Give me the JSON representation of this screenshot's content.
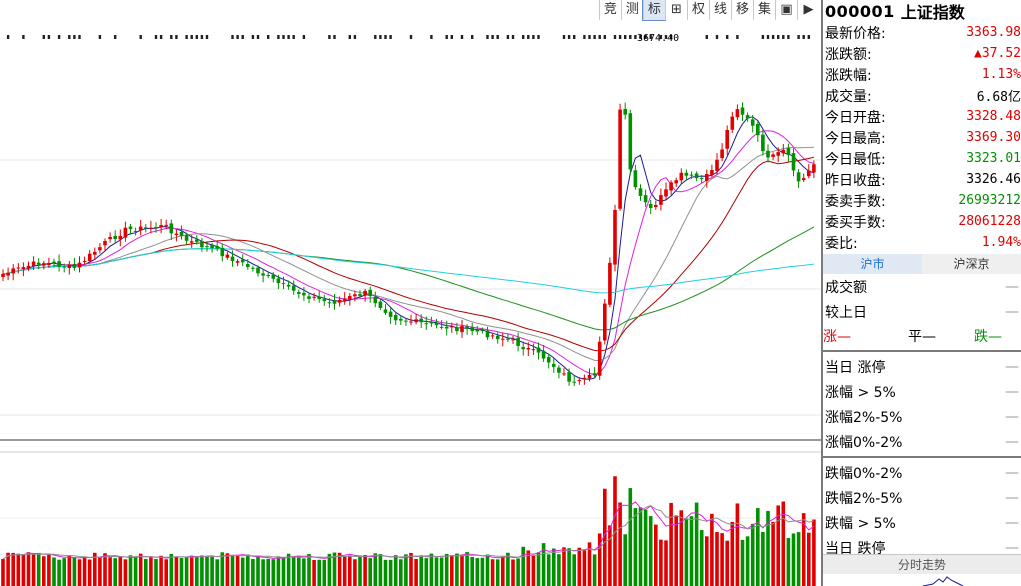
{
  "toolbar": {
    "buttons": [
      "竞",
      "测",
      "标",
      "⊞",
      "权",
      "线",
      "移",
      "集",
      "▣",
      "▶"
    ],
    "active_index": 2
  },
  "chart": {
    "peak_label": "3674.40"
  },
  "quote": {
    "code": "000001",
    "name": "上证指数",
    "rows": [
      {
        "label": "最新价格:",
        "value": "3363.98",
        "color": "up"
      },
      {
        "label": "涨跌额:",
        "value": "▲37.52",
        "color": "up"
      },
      {
        "label": "涨跌幅:",
        "value": "1.13%",
        "color": "up"
      },
      {
        "label": "成交量:",
        "value": "6.68亿",
        "color": "neutral"
      },
      {
        "label": "今日开盘:",
        "value": "3328.48",
        "color": "up"
      },
      {
        "label": "今日最高:",
        "value": "3369.30",
        "color": "up"
      },
      {
        "label": "今日最低:",
        "value": "3323.01",
        "color": "down"
      },
      {
        "label": "昨日收盘:",
        "value": "3326.46",
        "color": "neutral"
      },
      {
        "label": "委卖手数:",
        "value": "26993212",
        "color": "down"
      },
      {
        "label": "委买手数:",
        "value": "28061228",
        "color": "up"
      },
      {
        "label": "委比:",
        "value": "1.94%",
        "color": "up"
      }
    ]
  },
  "market_tabs": [
    "沪市",
    "沪深京"
  ],
  "stats": {
    "turnover_label": "成交额",
    "turnover_value": "—",
    "prev_day_label": "较上日",
    "prev_day_value": "—",
    "rise_label": "涨—",
    "flat_label": "平—",
    "fall_label": "跌—",
    "up_rows": [
      "当日 涨停",
      "涨幅 > 5%",
      "涨幅2%-5%",
      "涨幅0%-2%"
    ],
    "down_rows": [
      "跌幅0%-2%",
      "跌幅2%-5%",
      "跌幅 > 5%",
      "当日 跌停"
    ],
    "row_dash": "—"
  },
  "intraday_button": "分时走势",
  "colors": {
    "up": "#e00000",
    "down": "#009000",
    "ma5": "#1a1a99",
    "ma10": "#e020e0",
    "ma20": "#909090",
    "ma30": "#b00000",
    "ma60": "#1e8f1e",
    "ma120": "#20d0e0"
  }
}
